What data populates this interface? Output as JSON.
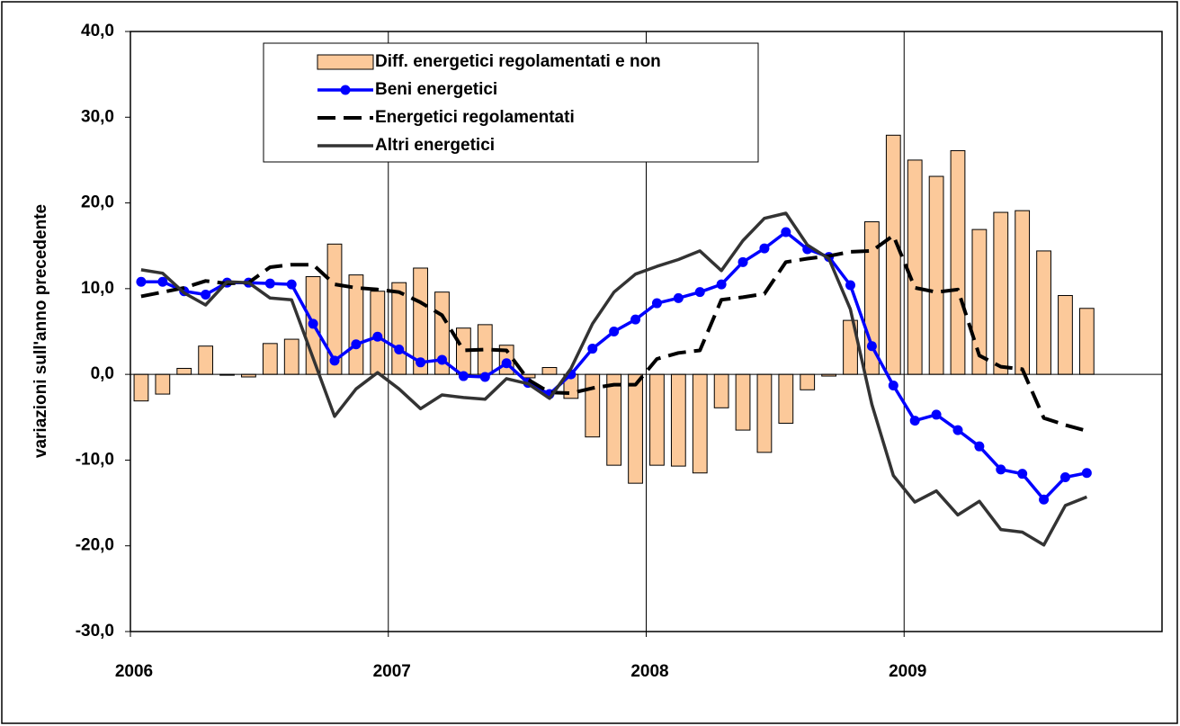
{
  "chart_data": {
    "type": "bar",
    "ylabel": "variazioni sull'anno precedente",
    "categories": [
      null,
      null,
      null,
      null,
      null,
      null,
      null,
      null,
      null,
      null,
      null,
      null,
      null,
      null,
      null,
      null,
      null,
      null,
      null,
      null,
      null,
      null,
      null,
      null,
      null,
      null,
      null,
      null,
      null,
      null,
      null,
      null,
      null,
      null,
      null,
      null,
      null,
      null,
      null,
      null,
      null,
      null,
      null,
      null,
      null
    ],
    "xlim": [
      0,
      48
    ],
    "xticks": [
      {
        "value": 0,
        "label": "2006"
      },
      {
        "value": 12,
        "label": "2007"
      },
      {
        "value": 24,
        "label": "2008"
      },
      {
        "value": 36,
        "label": "2009"
      }
    ],
    "ylim": [
      -30,
      40
    ],
    "yticks": [
      {
        "value": -30,
        "label": "-30,0"
      },
      {
        "value": -20,
        "label": "-20,0"
      },
      {
        "value": -10,
        "label": "-10,0"
      },
      {
        "value": 0,
        "label": "0,0"
      },
      {
        "value": 10,
        "label": "10,0"
      },
      {
        "value": 20,
        "label": "20,0"
      },
      {
        "value": 30,
        "label": "30,0"
      },
      {
        "value": 40,
        "label": "40,0"
      }
    ],
    "grid": "x",
    "legend": "top",
    "series": [
      {
        "name": "Diff. energetici regolamentati e non",
        "type": "bar",
        "color": "#fcc99a",
        "values": [
          -3.1,
          -2.3,
          0.7,
          3.3,
          -0.1,
          -0.3,
          3.6,
          4.1,
          11.4,
          15.2,
          11.6,
          9.7,
          10.7,
          12.4,
          9.6,
          5.4,
          5.8,
          3.4,
          -0.4,
          0.8,
          -2.8,
          -7.3,
          -10.6,
          -12.7,
          -10.6,
          -10.7,
          -11.5,
          -3.9,
          -6.5,
          -9.1,
          -5.7,
          -1.8,
          -0.2,
          6.3,
          17.8,
          27.9,
          25.0,
          23.1,
          26.1,
          16.9,
          18.9,
          19.1,
          14.4,
          9.2,
          7.7
        ]
      },
      {
        "name": "Beni energetici",
        "type": "line",
        "color": "#0000ff",
        "marker": "circle",
        "values": [
          10.8,
          10.8,
          9.7,
          9.3,
          10.7,
          10.7,
          10.6,
          10.5,
          5.9,
          1.6,
          3.5,
          4.4,
          2.9,
          1.4,
          1.7,
          -0.2,
          -0.3,
          1.3,
          -1.0,
          -2.3,
          0.0,
          3.0,
          5.0,
          6.4,
          8.3,
          8.9,
          9.6,
          10.5,
          13.1,
          14.7,
          16.6,
          14.6,
          13.7,
          10.4,
          3.3,
          -1.3,
          -5.4,
          -4.7,
          -6.5,
          -8.4,
          -11.1,
          -11.6,
          -14.6,
          -12.0,
          -11.5
        ]
      },
      {
        "name": "Energetici regolamentati",
        "type": "line",
        "color": "#000000",
        "dashed": true,
        "values": [
          9.1,
          9.6,
          10.1,
          10.9,
          10.6,
          10.7,
          12.5,
          12.8,
          12.8,
          10.5,
          10.1,
          9.9,
          9.6,
          8.4,
          6.9,
          2.8,
          2.9,
          2.8,
          -0.6,
          -2.1,
          -2.2,
          -1.6,
          -1.2,
          -1.2,
          1.8,
          2.5,
          2.8,
          8.7,
          9.0,
          9.4,
          13.1,
          13.5,
          13.8,
          14.3,
          14.4,
          16.2,
          10.1,
          9.6,
          9.9,
          2.2,
          0.9,
          0.6,
          -5.1,
          -5.9,
          -6.6
        ]
      },
      {
        "name": "Altri energetici",
        "type": "line",
        "color": "#333333",
        "values": [
          12.2,
          11.8,
          9.5,
          8.1,
          10.8,
          10.7,
          8.9,
          8.7,
          1.9,
          -4.9,
          -1.7,
          0.2,
          -1.7,
          -4.0,
          -2.4,
          -2.7,
          -2.9,
          -0.5,
          -1.1,
          -2.8,
          0.7,
          5.9,
          9.6,
          11.7,
          12.6,
          13.4,
          14.4,
          12.1,
          15.6,
          18.2,
          18.8,
          15.1,
          13.5,
          7.6,
          -3.5,
          -11.8,
          -14.9,
          -13.6,
          -16.4,
          -14.8,
          -18.1,
          -18.4,
          -19.9,
          -15.3,
          -14.3
        ]
      }
    ]
  }
}
